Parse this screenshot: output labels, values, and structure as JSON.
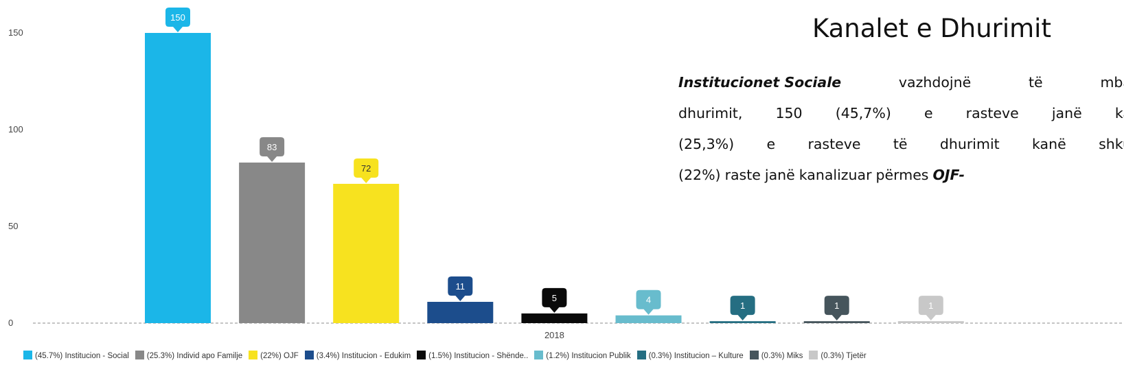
{
  "chart_data": {
    "type": "bar",
    "title": "Kanalet e Dhurimit",
    "x": [
      "2018"
    ],
    "ylim": [
      0,
      150
    ],
    "yticks": [
      0,
      50,
      100,
      150
    ],
    "grid": false,
    "legend_position": "bottom",
    "series": [
      {
        "name": "(45.7%) Institucion - Social",
        "values": [
          150
        ],
        "color": "#1bb6e8"
      },
      {
        "name": "(25.3%) Individ apo Familje",
        "values": [
          83
        ],
        "color": "#888888"
      },
      {
        "name": "(22%) OJF",
        "values": [
          72
        ],
        "color": "#f7e21f"
      },
      {
        "name": "(3.4%) Institucion - Edukim",
        "values": [
          11
        ],
        "color": "#1c4d8c"
      },
      {
        "name": "(1.5%) Institucion - Shënde..",
        "values": [
          5
        ],
        "color": "#0a0a0a"
      },
      {
        "name": "(1.2%) Institucion Publik",
        "values": [
          4
        ],
        "color": "#68bccd"
      },
      {
        "name": "(0.3%) Institucion – Kulture",
        "values": [
          1
        ],
        "color": "#256e82"
      },
      {
        "name": "(0.3%) Miks",
        "values": [
          1
        ],
        "color": "#46555c"
      },
      {
        "name": "(0.3%) Tjetër",
        "values": [
          1
        ],
        "color": "#c8c8c8"
      }
    ]
  },
  "text_panel": {
    "title": "Kanalet e Dhurimit",
    "lines": [
      [
        "Institucionet Sociale",
        "vazhdojnë",
        "të",
        "mba"
      ],
      [
        "dhurimit,",
        "150",
        "(45,7%)",
        "e",
        "rasteve",
        "janë",
        "ka"
      ],
      [
        "(25,3%)",
        "e",
        "rasteve",
        "të",
        "dhurimit",
        "kanë",
        "shku"
      ],
      [
        "(22%)",
        "raste",
        "janë",
        "kanalizuar",
        "përmes",
        "OJF-"
      ]
    ]
  }
}
